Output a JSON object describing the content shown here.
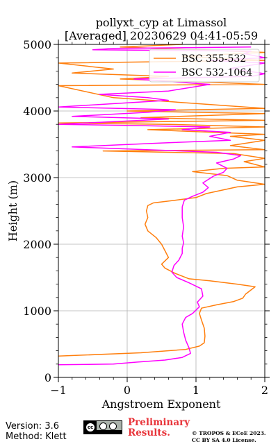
{
  "chart_data": {
    "type": "line",
    "title": "pollyxt_cyp at Limassol",
    "subtitle": "[Averaged] 20230629 04:41-05:59",
    "xlabel": "Angstroem Exponent",
    "ylabel": "Height (m)",
    "xlim": [
      -1,
      2
    ],
    "ylim": [
      0,
      5000
    ],
    "xticks": [
      "−1",
      "0",
      "1",
      "2"
    ],
    "yticks": [
      "0",
      "1000",
      "2000",
      "3000",
      "4000",
      "5000"
    ],
    "grid": true,
    "legend": "top-right",
    "series": [
      {
        "name": "BSC 355-532",
        "color": "#ff7f0e",
        "points": [
          [
            -1.0,
            320
          ],
          [
            0.2,
            370
          ],
          [
            0.85,
            420
          ],
          [
            1.05,
            470
          ],
          [
            1.12,
            520
          ],
          [
            1.13,
            620
          ],
          [
            1.12,
            740
          ],
          [
            1.08,
            860
          ],
          [
            1.05,
            960
          ],
          [
            1.08,
            1040
          ],
          [
            1.3,
            1090
          ],
          [
            1.55,
            1140
          ],
          [
            1.68,
            1190
          ],
          [
            1.72,
            1250
          ],
          [
            1.86,
            1360
          ],
          [
            1.6,
            1400
          ],
          [
            1.2,
            1450
          ],
          [
            0.9,
            1480
          ],
          [
            0.7,
            1560
          ],
          [
            0.55,
            1640
          ],
          [
            0.5,
            1700
          ],
          [
            0.6,
            1800
          ],
          [
            0.55,
            1900
          ],
          [
            0.5,
            2000
          ],
          [
            0.42,
            2100
          ],
          [
            0.3,
            2200
          ],
          [
            0.26,
            2300
          ],
          [
            0.3,
            2400
          ],
          [
            0.28,
            2500
          ],
          [
            0.3,
            2580
          ],
          [
            0.38,
            2620
          ],
          [
            0.7,
            2660
          ],
          [
            1.0,
            2700
          ],
          [
            1.15,
            2760
          ],
          [
            1.6,
            2860
          ],
          [
            2.0,
            2900
          ],
          [
            1.6,
            2960
          ],
          [
            1.45,
            3030
          ],
          [
            0.95,
            3090
          ],
          [
            1.4,
            3140
          ],
          [
            2.0,
            3160
          ],
          [
            1.7,
            3240
          ],
          [
            2.0,
            3290
          ],
          [
            1.55,
            3360
          ],
          [
            -0.35,
            3400
          ],
          [
            2.0,
            3420
          ],
          [
            1.5,
            3480
          ],
          [
            2.0,
            3560
          ],
          [
            1.5,
            3620
          ],
          [
            2.0,
            3650
          ],
          [
            1.0,
            3690
          ],
          [
            0.3,
            3720
          ],
          [
            2.0,
            3760
          ],
          [
            0.6,
            3800
          ],
          [
            -1.0,
            3820
          ],
          [
            2.0,
            3860
          ],
          [
            0.2,
            3900
          ],
          [
            2.0,
            3960
          ],
          [
            0.0,
            4000
          ],
          [
            2.0,
            4040
          ],
          [
            -0.2,
            4200
          ],
          [
            -1.0,
            4380
          ],
          [
            2.0,
            4400
          ],
          [
            -0.1,
            4480
          ],
          [
            0.6,
            4520
          ],
          [
            -0.8,
            4570
          ],
          [
            -0.2,
            4630
          ],
          [
            -1.0,
            4720
          ],
          [
            2.0,
            4760
          ],
          [
            0.8,
            4820
          ],
          [
            2.0,
            4880
          ],
          [
            -0.1,
            4960
          ],
          [
            0.8,
            5000
          ]
        ]
      },
      {
        "name": "BSC 532-1064",
        "color": "#ff00ff",
        "points": [
          [
            -1.0,
            190
          ],
          [
            -0.2,
            200
          ],
          [
            0.15,
            230
          ],
          [
            0.55,
            260
          ],
          [
            0.8,
            300
          ],
          [
            0.92,
            360
          ],
          [
            0.9,
            440
          ],
          [
            0.85,
            560
          ],
          [
            0.82,
            680
          ],
          [
            0.8,
            800
          ],
          [
            0.85,
            900
          ],
          [
            0.95,
            960
          ],
          [
            1.05,
            1060
          ],
          [
            1.02,
            1130
          ],
          [
            1.1,
            1220
          ],
          [
            1.08,
            1330
          ],
          [
            0.9,
            1420
          ],
          [
            0.72,
            1500
          ],
          [
            0.65,
            1580
          ],
          [
            0.68,
            1680
          ],
          [
            0.75,
            1760
          ],
          [
            0.8,
            1860
          ],
          [
            0.8,
            1940
          ],
          [
            0.82,
            2020
          ],
          [
            0.8,
            2120
          ],
          [
            0.82,
            2260
          ],
          [
            0.8,
            2400
          ],
          [
            0.8,
            2560
          ],
          [
            0.83,
            2660
          ],
          [
            0.95,
            2720
          ],
          [
            1.1,
            2780
          ],
          [
            1.18,
            2850
          ],
          [
            1.1,
            2920
          ],
          [
            1.25,
            3020
          ],
          [
            1.4,
            3080
          ],
          [
            1.45,
            3140
          ],
          [
            1.3,
            3220
          ],
          [
            1.55,
            3280
          ],
          [
            1.65,
            3330
          ],
          [
            1.3,
            3380
          ],
          [
            -0.8,
            3460
          ],
          [
            0.5,
            3520
          ],
          [
            1.5,
            3560
          ],
          [
            1.2,
            3620
          ],
          [
            1.5,
            3680
          ],
          [
            0.8,
            3720
          ],
          [
            1.2,
            3760
          ],
          [
            0.2,
            3780
          ],
          [
            -1.0,
            3800
          ],
          [
            0.6,
            3880
          ],
          [
            -0.8,
            3920
          ],
          [
            0.3,
            3980
          ],
          [
            0.7,
            4020
          ],
          [
            -1.0,
            4060
          ],
          [
            0.6,
            4160
          ],
          [
            0.3,
            4200
          ],
          [
            -0.4,
            4250
          ],
          [
            0.6,
            4300
          ],
          [
            1.2,
            4400
          ],
          [
            0.1,
            4480
          ],
          [
            1.8,
            4520
          ],
          [
            2.0,
            4560
          ],
          [
            1.5,
            4640
          ],
          [
            2.0,
            4720
          ],
          [
            1.2,
            4760
          ],
          [
            2.0,
            4800
          ],
          [
            1.7,
            4860
          ],
          [
            1.8,
            4900
          ],
          [
            -0.5,
            4920
          ],
          [
            -0.2,
            4940
          ],
          [
            1.8,
            4960
          ]
        ]
      }
    ]
  },
  "footer": {
    "version": "Version: 3.6",
    "method": "Method: Klett",
    "preliminary_line1": "Preliminary",
    "preliminary_line2": "Results.",
    "copyright_line1": "© TROPOS & ECoE 2023.",
    "copyright_line2": "CC BY SA 4.0 License."
  }
}
